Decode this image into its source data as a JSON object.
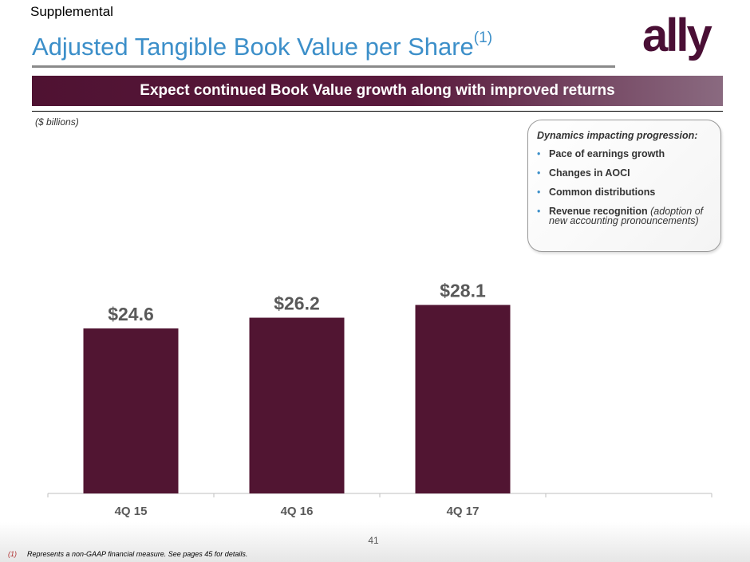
{
  "header": {
    "supplemental": "Supplemental",
    "title": "Adjusted Tangible Book Value per Share",
    "title_footnote_ref": "(1)",
    "logo_text": "ally"
  },
  "banner": {
    "text": "Expect continued Book Value growth along with improved returns"
  },
  "units_label": "($ billions)",
  "chart_data": {
    "type": "bar",
    "categories": [
      "4Q 15",
      "4Q 16",
      "4Q 17"
    ],
    "values": [
      24.6,
      26.2,
      28.1
    ],
    "data_labels": [
      "$24.6",
      "$26.2",
      "$28.1"
    ],
    "ylabel": "($ billions)",
    "bar_color": "#511532",
    "grid": false
  },
  "callout": {
    "title": "Dynamics impacting progression:",
    "items": [
      {
        "label": "Pace of earnings growth",
        "note": ""
      },
      {
        "label": "Changes in AOCI",
        "note": ""
      },
      {
        "label": "Common distributions",
        "note": ""
      },
      {
        "label": "Revenue recognition",
        "note": "(adoption of new accounting pronouncements)"
      }
    ]
  },
  "footer": {
    "page_number": "41",
    "footnote_marker": "(1)",
    "footnote_text": "Represents a non-GAAP financial measure. See pages 45 for details."
  },
  "colors": {
    "title": "#3c8fc9",
    "brand_plum": "#511532",
    "bullet": "#3c8fc9"
  }
}
